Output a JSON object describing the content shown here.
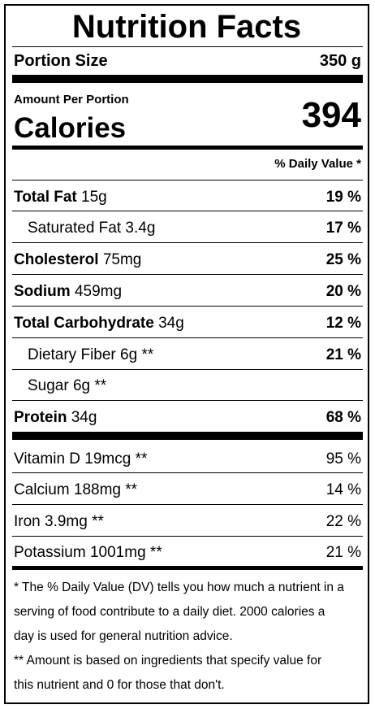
{
  "title": "Nutrition Facts",
  "portion": {
    "label": "Portion Size",
    "value": "350 g"
  },
  "amount_per_portion": "Amount Per Portion",
  "calories": {
    "label": "Calories",
    "value": "394"
  },
  "daily_value_header": "% Daily Value *",
  "nutrients": [
    {
      "name": "Total Fat",
      "amount": "15g",
      "dv": "19 %"
    },
    {
      "name": "Saturated Fat 3.4g",
      "dv": "17 %"
    },
    {
      "name": "Cholesterol",
      "amount": "75mg",
      "dv": "25 %"
    },
    {
      "name": "Sodium",
      "amount": "459mg",
      "dv": "20 %"
    },
    {
      "name": "Total Carbohydrate",
      "amount": "34g",
      "dv": "12 %"
    },
    {
      "name": "Dietary Fiber 6g **",
      "dv": "21 %"
    },
    {
      "name": "Sugar 6g **"
    },
    {
      "name": "Protein",
      "amount": "34g",
      "dv": "68 %"
    }
  ],
  "vitamins": [
    {
      "name": "Vitamin D 19mcg **",
      "dv": "95 %"
    },
    {
      "name": "Calcium 188mg **",
      "dv": "14 %"
    },
    {
      "name": "Iron 3.9mg **",
      "dv": "22 %"
    },
    {
      "name": "Potassium 1001mg **",
      "dv": "21 %"
    }
  ],
  "footnotes": {
    "line1": "* The % Daily Value (DV) tells you how much a nutrient in a",
    "line2": "serving of food contribute to a daily diet. 2000 calories a",
    "line3": "day is used for general nutrition advice.",
    "line4": "** Amount is based on ingredients that specify value for",
    "line5": "this nutrient and 0 for those that don't."
  }
}
